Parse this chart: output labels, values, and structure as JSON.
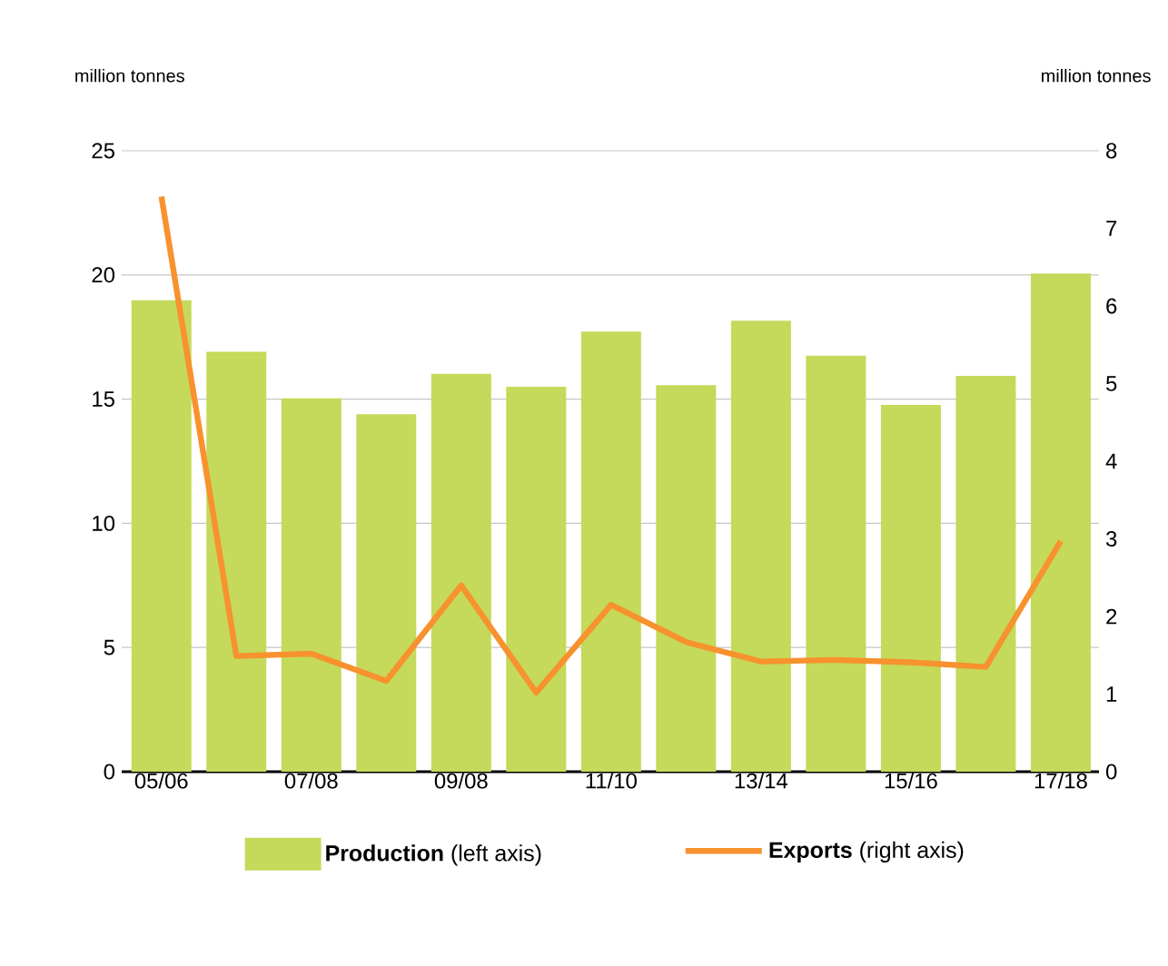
{
  "chart_data": {
    "type": "bar",
    "categories": [
      "05/06",
      null,
      "07/08",
      null,
      "09/08",
      null,
      "11/10",
      null,
      "13/14",
      null,
      "15/16",
      null,
      "17/18"
    ],
    "series": [
      {
        "name": "**Production** (left axis)",
        "axis": "y",
        "color": "#c5d95a",
        "values": [
          18.98,
          16.9,
          15.03,
          14.39,
          16.02,
          15.5,
          17.72,
          15.56,
          18.16,
          16.75,
          14.77,
          15.94,
          20.06
        ]
      },
      {
        "name": "**Exports** (right axis)",
        "type": "line",
        "axis": "y2",
        "color": "#f7922e",
        "values": [
          7.41,
          1.49,
          1.52,
          1.17,
          2.4,
          1.02,
          2.15,
          1.67,
          1.42,
          1.44,
          1.41,
          1.35,
          2.97
        ]
      }
    ],
    "ylabel": "million tonnes",
    "y2label": "million tonnes",
    "ylim": [
      0,
      25
    ],
    "yticks": [
      0,
      5,
      10,
      15,
      20,
      25
    ],
    "y2lim": [
      0,
      8
    ],
    "y2ticks": [
      0,
      1,
      2,
      3,
      4,
      5,
      6,
      7,
      8
    ],
    "grid": "y",
    "legend": "bottom",
    "line_style": "solid",
    "marker": "none"
  }
}
